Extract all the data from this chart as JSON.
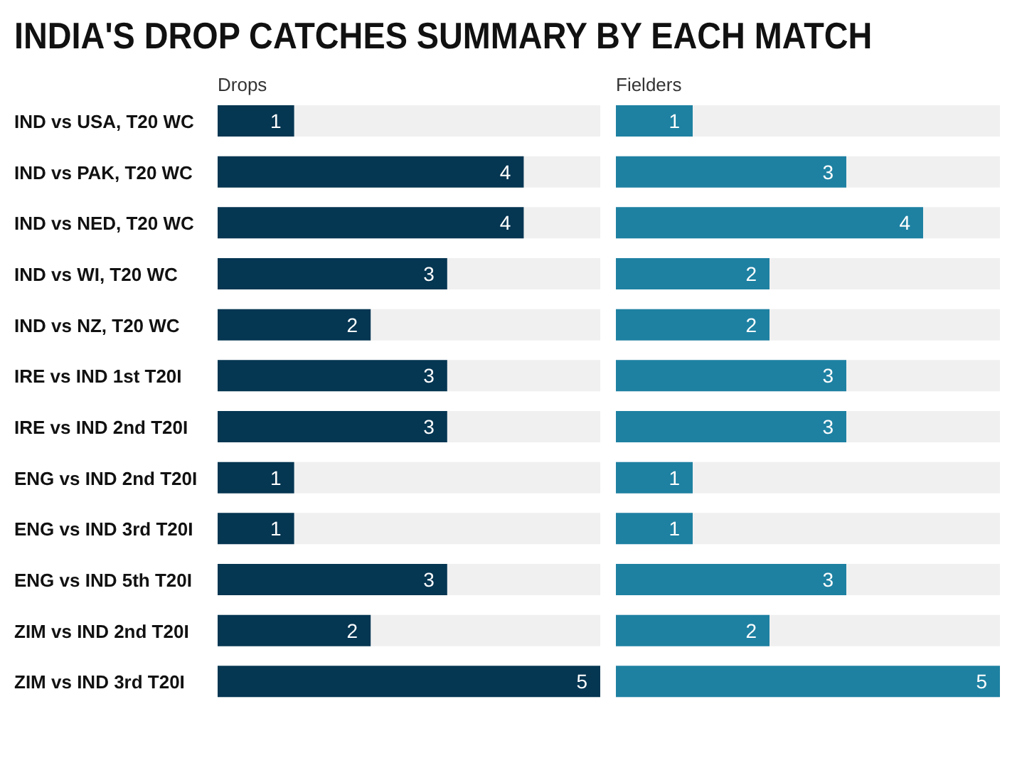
{
  "chart_data": [
    {
      "type": "bar",
      "orientation": "horizontal",
      "title": "INDIA'S DROP CATCHES SUMMARY BY EACH MATCH",
      "xlabel": "Drops",
      "categories": [
        "IND vs USA, T20 WC",
        "IND vs PAK, T20 WC",
        "IND vs NED, T20 WC",
        "IND vs WI, T20 WC",
        "IND vs NZ, T20 WC",
        "IRE vs IND 1st T20I",
        "IRE vs IND 2nd T20I",
        "ENG vs IND 2nd T20I",
        "ENG vs IND 3rd T20I",
        "ENG vs IND 5th T20I",
        "ZIM vs IND 2nd T20I",
        "ZIM vs IND 3rd T20I"
      ],
      "values": [
        1,
        4,
        4,
        3,
        2,
        3,
        3,
        1,
        1,
        3,
        2,
        5
      ],
      "color": "#053652",
      "xlim": [
        0,
        5
      ],
      "data_labels": true,
      "tick_labels": "y"
    },
    {
      "type": "bar",
      "orientation": "horizontal",
      "xlabel": "Fielders",
      "categories": [
        null,
        null,
        null,
        null,
        null,
        null,
        null,
        null,
        null,
        null,
        null,
        null
      ],
      "values": [
        1,
        3,
        4,
        2,
        2,
        3,
        3,
        1,
        1,
        3,
        2,
        5
      ],
      "color": "#1e81a2",
      "xlim": [
        0,
        5
      ],
      "data_labels": true,
      "tick_labels": false
    }
  ]
}
